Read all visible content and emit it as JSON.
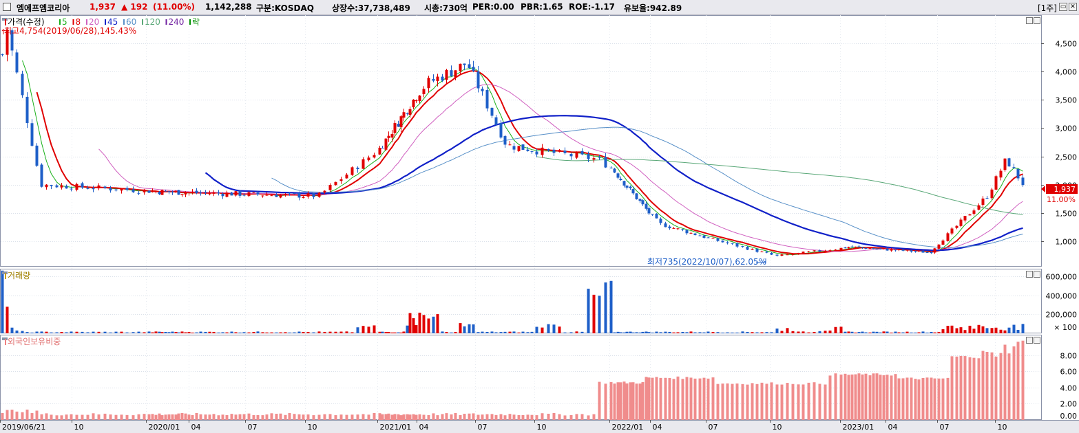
{
  "header": {
    "stock_name": "엠에프엠코리아",
    "price": "1,937",
    "change": "▲ 192",
    "change_pct": "(11.00%)",
    "volume": "1,142,288",
    "market": "구분:KOSDAQ",
    "listed": "상장수:37,738,489",
    "mcap": "시총:730억",
    "per": "PER:0.00",
    "pbr": "PBR:1.65",
    "roe": "ROE:-1.17",
    "float": "유보율:942.89",
    "period": "[1주]"
  },
  "colors": {
    "up": "#e00000",
    "down": "#1e5fc8",
    "ma5": "#18b018",
    "ma8": "#e00000",
    "ma20": "#d060c0",
    "ma45": "#1020c8",
    "ma60": "#5890c8",
    "ma120": "#5aa878",
    "ma240": "#7020a0",
    "grid": "#c8d0dc"
  },
  "legend": {
    "price": "가격(수정)",
    "items": [
      {
        "label": "5",
        "color": "#18b018"
      },
      {
        "label": "8",
        "color": "#e00000"
      },
      {
        "label": "20",
        "color": "#d060c0"
      },
      {
        "label": "45",
        "color": "#1020c8"
      },
      {
        "label": "60",
        "color": "#5890c8"
      },
      {
        "label": "120",
        "color": "#5aa878"
      },
      {
        "label": "240",
        "color": "#7020a0"
      },
      {
        "label": "락",
        "color": "#009000"
      }
    ]
  },
  "annotations": {
    "high": "최고4,754(2019/06/28),145.43%",
    "low": "최저735(2022/10/07),62.05%",
    "last_price": "1,937",
    "last_pct": "11.00%"
  },
  "panels": {
    "volume_title": "거래량",
    "foreign_title": "외국인보유비중"
  },
  "chart_data": [
    {
      "type": "candlestick",
      "title": "가격(수정)",
      "y_ticks": [
        "4,500",
        "4,000",
        "3,500",
        "3,000",
        "2,500",
        "2,000",
        "1,500",
        "1,000"
      ],
      "ylim": [
        560,
        5000
      ],
      "x_ticks": [
        "2019/06/21",
        "10",
        "2020/01",
        "04",
        "07",
        "10",
        "2021/01",
        "04",
        "07",
        "10",
        "2022/01",
        "04",
        "07",
        "10",
        "2023/01",
        "04",
        "07",
        "10"
      ],
      "series_description": "Weekly candles with moving averages 5, 8, 20, 45, 60, 120, 240",
      "key_points": [
        {
          "x": "2019/06/21",
          "y": 4300
        },
        {
          "x": "2019/06/28",
          "y": 4754
        },
        {
          "x": "2019/08",
          "y": 2000
        },
        {
          "x": "2020/01",
          "y": 1880
        },
        {
          "x": "2020/10",
          "y": 1800
        },
        {
          "x": "2020/12",
          "y": 2450
        },
        {
          "x": "2021/04",
          "y": 3800
        },
        {
          "x": "2021/06",
          "y": 4150
        },
        {
          "x": "2021/08",
          "y": 2700
        },
        {
          "x": "2021/12",
          "y": 2450
        },
        {
          "x": "2022/04",
          "y": 1300
        },
        {
          "x": "2022/10/07",
          "y": 735
        },
        {
          "x": "2023/01",
          "y": 900
        },
        {
          "x": "2023/06",
          "y": 800
        },
        {
          "x": "2023/09",
          "y": 1800
        },
        {
          "x": "2023/10",
          "y": 2450
        },
        {
          "x": "2023/11",
          "y": 1937
        }
      ]
    },
    {
      "type": "bar",
      "title": "거래량",
      "y_ticks": [
        "600,000",
        "400,000",
        "200,000",
        "× 100"
      ],
      "ylim": [
        0,
        680000
      ]
    },
    {
      "type": "bar",
      "title": "외국인보유비중",
      "y_ticks": [
        "8.00",
        "6.00",
        "4.00",
        "2.00",
        "0.00"
      ],
      "ylim": [
        0,
        10.5
      ],
      "values_summary": [
        {
          "period": "2019/06-2021/12",
          "value": 0.7
        },
        {
          "period": "2021/12-2022/03",
          "value": 4.6
        },
        {
          "period": "2022/03-2022/07",
          "value": 5.2
        },
        {
          "period": "2022/07-2022/12",
          "value": 4.5
        },
        {
          "period": "2022/12-2023/04",
          "value": 5.6
        },
        {
          "period": "2023/04-2023/07",
          "value": 5.1
        },
        {
          "period": "2023/07-2023/11",
          "value": 7.8
        },
        {
          "period": "2023/11",
          "value": 8.1
        }
      ]
    }
  ]
}
